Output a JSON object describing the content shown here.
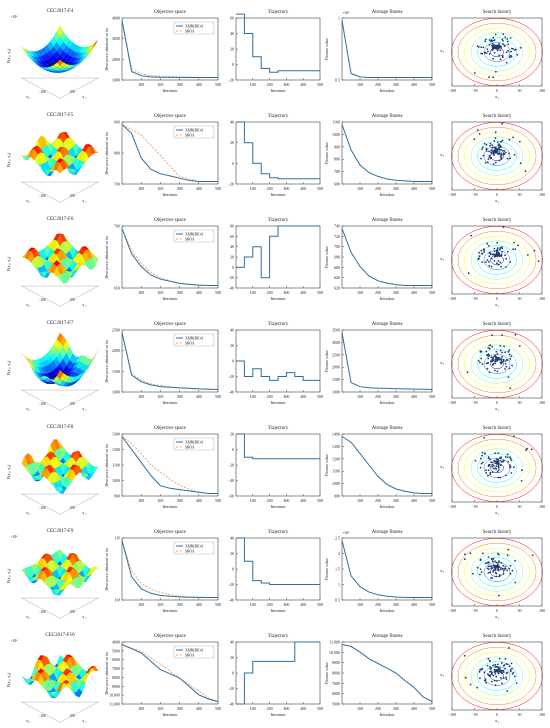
{
  "labels": {
    "col_titles": [
      "Objective space",
      "Trajectory",
      "Average fitness",
      "Search history"
    ],
    "obj_xlabel": "Iteration",
    "obj_ylabel": "Best score obtained so far",
    "traj_xlabel": "Iteration",
    "avg_xlabel": "Iteration",
    "avg_ylabel": "Fitness value",
    "surf_zlabel": "F(x₁, x₂)",
    "surf_x1": "x₁",
    "surf_x2": "x₂",
    "hist_xlabel": "x₁",
    "hist_ylabel": "x₂"
  },
  "colors": {
    "primary": "#2f6f9f",
    "secondary": "#e6a77a",
    "scatter": "#1f3e6b",
    "axis": "#444444"
  },
  "chart_data": [
    {
      "type": "line",
      "row_title": "CEC2017-F4",
      "surface_ticks": [
        "100",
        "0",
        "−100",
        "100",
        "0",
        "−100"
      ],
      "surface_exp": "×10⁴",
      "objective": {
        "legend": [
          "AMRHROA",
          "SBOA"
        ],
        "ylabel_ticks": [
          "1000",
          "2000",
          "3000",
          "4000"
        ],
        "xticks": [
          "100",
          "200",
          "300",
          "400",
          "500"
        ],
        "series": [
          {
            "name": "AMRHROA",
            "values": [
              4300,
              900,
              620,
              540,
              520,
              510,
              505,
              500,
              500,
              500,
              500
            ]
          },
          {
            "name": "SBOA",
            "values": [
              4300,
              1100,
              760,
              640,
              600,
              580,
              560,
              540,
              530,
              520,
              515
            ]
          }
        ]
      },
      "trajectory": {
        "yticks": [
          "60",
          "40",
          "20",
          "0",
          "−20"
        ],
        "xticks": [
          "100",
          "200",
          "300",
          "400",
          "500"
        ],
        "values": [
          65,
          40,
          10,
          -5,
          -10,
          -8,
          -8,
          -8,
          -8,
          -8,
          -8
        ]
      },
      "average": {
        "yticks": [
          "1",
          "0.5"
        ],
        "exp": "×10⁴",
        "xticks": [
          "100",
          "200",
          "300",
          "400",
          "500"
        ],
        "values": [
          1.0,
          0.08,
          0.02,
          0.01,
          0.01,
          0.01,
          0.01,
          0.01,
          0.01,
          0.01,
          0.01
        ]
      },
      "history_ticks": [
        "−100",
        "−50",
        "0",
        "50",
        "100"
      ]
    },
    {
      "type": "line",
      "row_title": "CEC2017-F5",
      "surface_ticks": [
        "100",
        "0",
        "−100",
        "100",
        "0",
        "−100"
      ],
      "surface_exp": "",
      "objective": {
        "legend": [
          "AMRHROA",
          "SBOA"
        ],
        "ylabel_ticks": [
          "700",
          "800",
          "900"
        ],
        "xticks": [
          "100",
          "200",
          "300",
          "400",
          "500"
        ],
        "series": [
          {
            "name": "AMRHROA",
            "values": [
              900,
              860,
              750,
              700,
              680,
              670,
              660,
              650,
              645,
              645,
              645
            ]
          },
          {
            "name": "SBOA",
            "values": [
              900,
              880,
              860,
              820,
              780,
              740,
              700,
              690,
              680,
              680,
              680
            ]
          }
        ]
      },
      "trajectory": {
        "yticks": [
          "40",
          "20",
          "0",
          "−20"
        ],
        "xticks": [
          "100",
          "200",
          "300",
          "400",
          "500"
        ],
        "values": [
          40,
          20,
          0,
          -10,
          -14,
          -15,
          -15,
          -15,
          -15,
          -15,
          -15
        ]
      },
      "average": {
        "yticks": [
          "1100",
          "1000",
          "900",
          "800",
          "700",
          "600"
        ],
        "exp": "",
        "xticks": [
          "100",
          "200",
          "300",
          "400",
          "500"
        ],
        "values": [
          1100,
          900,
          780,
          720,
          690,
          670,
          660,
          655,
          650,
          650,
          650
        ]
      },
      "history_ticks": [
        "−100",
        "−50",
        "0",
        "50",
        "100"
      ]
    },
    {
      "type": "line",
      "row_title": "CEC2017-F6",
      "surface_ticks": [
        "100",
        "0",
        "−100",
        "100",
        "0",
        "−100"
      ],
      "surface_exp": "",
      "objective": {
        "legend": [
          "AMRHROA",
          "SBOA"
        ],
        "ylabel_ticks": [
          "650",
          "700"
        ],
        "xticks": [
          "100",
          "200",
          "300",
          "400",
          "500"
        ],
        "series": [
          {
            "name": "AMRHROA",
            "values": [
              740,
              680,
              650,
              630,
              620,
              615,
              610,
              608,
              606,
              605,
              605
            ]
          },
          {
            "name": "SBOA",
            "values": [
              740,
              690,
              660,
              640,
              628,
              620,
              615,
              612,
              610,
              610,
              610
            ]
          }
        ]
      },
      "trajectory": {
        "yticks": [
          "80",
          "60",
          "40",
          "20",
          "0",
          "−20",
          "−40"
        ],
        "xticks": [
          "100",
          "200",
          "300",
          "400",
          "500"
        ],
        "values": [
          0,
          20,
          40,
          -20,
          60,
          80,
          80,
          80,
          80,
          80,
          80
        ]
      },
      "average": {
        "yticks": [
          "740",
          "720",
          "700",
          "680",
          "660",
          "640",
          "620"
        ],
        "exp": "",
        "xticks": [
          "100",
          "200",
          "300",
          "400",
          "500"
        ],
        "values": [
          740,
          690,
          660,
          640,
          630,
          625,
          622,
          620,
          620,
          620,
          620
        ]
      },
      "history_ticks": [
        "−100",
        "−50",
        "0",
        "50",
        "100"
      ]
    },
    {
      "type": "line",
      "row_title": "CEC2017-F7",
      "surface_ticks": [
        "100",
        "0",
        "−100",
        "100",
        "0",
        "−100"
      ],
      "surface_exp": "",
      "objective": {
        "legend": [
          "AMRHROA",
          "SBOA"
        ],
        "ylabel_ticks": [
          "1000",
          "1500",
          "2000",
          "2500"
        ],
        "xticks": [
          "100",
          "200",
          "300",
          "400",
          "500"
        ],
        "series": [
          {
            "name": "AMRHROA",
            "values": [
              2600,
              1300,
              1100,
              1000,
              950,
              930,
              910,
              900,
              880,
              870,
              860
            ]
          },
          {
            "name": "SBOA",
            "values": [
              2600,
              1400,
              1200,
              1100,
              1050,
              1000,
              980,
              960,
              950,
              940,
              930
            ]
          }
        ]
      },
      "trajectory": {
        "yticks": [
          "40",
          "20",
          "0",
          "−20",
          "−40"
        ],
        "xticks": [
          "100",
          "200",
          "300",
          "400",
          "500"
        ],
        "values": [
          0,
          -20,
          -10,
          -20,
          -25,
          -20,
          -15,
          -20,
          -25,
          -25,
          -25
        ]
      },
      "average": {
        "yticks": [
          "3500",
          "3000",
          "2500",
          "2000",
          "1500",
          "1000"
        ],
        "exp": "",
        "xticks": [
          "100",
          "200",
          "300",
          "400",
          "500"
        ],
        "values": [
          3500,
          1200,
          1000,
          950,
          930,
          920,
          910,
          900,
          890,
          880,
          870
        ]
      },
      "history_ticks": [
        "−100",
        "−50",
        "0",
        "50",
        "100"
      ]
    },
    {
      "type": "line",
      "row_title": "CEC2017-F8",
      "surface_ticks": [
        "100",
        "0",
        "−100",
        "100",
        "0",
        "−100"
      ],
      "surface_exp": "",
      "objective": {
        "legend": [
          "AMRHROA",
          "SBOA"
        ],
        "ylabel_ticks": [
          "900",
          "1000",
          "1100",
          "1200",
          "1300"
        ],
        "xticks": [
          "100",
          "200",
          "300",
          "400",
          "500"
        ],
        "series": [
          {
            "name": "AMRHROA",
            "values": [
              1300,
              1200,
              1100,
              1000,
              920,
              900,
              890,
              880,
              870,
              860,
              860
            ]
          },
          {
            "name": "SBOA",
            "values": [
              1300,
              1250,
              1180,
              1100,
              1050,
              1000,
              960,
              930,
              910,
              900,
              900
            ]
          }
        ]
      },
      "trajectory": {
        "yticks": [
          "20",
          "0",
          "−20",
          "−40",
          "−60"
        ],
        "xticks": [
          "100",
          "200",
          "300",
          "400",
          "500"
        ],
        "values": [
          20,
          -10,
          -12,
          -12,
          -12,
          -12,
          -12,
          -12,
          -12,
          -12,
          -12
        ]
      },
      "average": {
        "yticks": [
          "1400",
          "1300",
          "1200",
          "1100",
          "1000",
          "900"
        ],
        "exp": "",
        "xticks": [
          "100",
          "200",
          "300",
          "400",
          "500"
        ],
        "values": [
          1400,
          1350,
          1250,
          1150,
          1050,
          980,
          940,
          920,
          905,
          900,
          900
        ]
      },
      "history_ticks": [
        "−100",
        "−50",
        "0",
        "50",
        "100"
      ]
    },
    {
      "type": "line",
      "row_title": "CEC2017-F9",
      "surface_ticks": [
        "100",
        "0",
        "−100",
        "100",
        "0",
        "−100"
      ],
      "surface_exp": "×10⁴",
      "objective": {
        "legend": [
          "AMRHROA",
          "SBOA"
        ],
        "ylabel_ticks": [
          "10⁴",
          "10³"
        ],
        "xticks": [
          "100",
          "200",
          "300",
          "400",
          "500"
        ],
        "series": [
          {
            "name": "AMRHROA",
            "values": [
              20000,
              8000,
              4000,
              2500,
              1800,
              1500,
              1300,
              1200,
              1150,
              1100,
              1100
            ]
          },
          {
            "name": "SBOA",
            "values": [
              20000,
              10000,
              6000,
              4000,
              3000,
              2200,
              1800,
              1500,
              1400,
              1300,
              1300
            ]
          }
        ]
      },
      "trajectory": {
        "yticks": [
          "40",
          "20",
          "0",
          "−20",
          "−40"
        ],
        "xticks": [
          "100",
          "200",
          "300",
          "400",
          "500"
        ],
        "values": [
          40,
          10,
          -15,
          -18,
          -20,
          -20,
          -20,
          -20,
          -20,
          -20,
          -20
        ]
      },
      "average": {
        "yticks": [
          "2.5",
          "2",
          "1.5",
          "1",
          "0.5"
        ],
        "exp": "×10⁴",
        "xticks": [
          "100",
          "200",
          "300",
          "400",
          "500"
        ],
        "values": [
          2.5,
          1.2,
          0.8,
          0.6,
          0.5,
          0.45,
          0.42,
          0.4,
          0.4,
          0.4,
          0.4
        ]
      },
      "history_ticks": [
        "−100",
        "−50",
        "0",
        "50",
        "100"
      ]
    },
    {
      "type": "line",
      "row_title": "CEC2017-F10",
      "surface_ticks": [
        "100",
        "0",
        "−100",
        "100",
        "0",
        "−100"
      ],
      "surface_exp": "×10⁴",
      "objective": {
        "legend": [
          "AMRHROA",
          "SBOA"
        ],
        "ylabel_ticks": [
          "11,000",
          "10,000",
          "9000",
          "8000",
          "7000",
          "6000",
          "5000",
          "4000"
        ],
        "xticks": [
          "100",
          "200",
          "300",
          "400",
          "500"
        ],
        "series": [
          {
            "name": "AMRHROA",
            "values": [
              11000,
              10500,
              10000,
              9000,
              8000,
              7500,
              7000,
              6000,
              5000,
              4500,
              4200
            ]
          },
          {
            "name": "SBOA",
            "values": [
              11000,
              10600,
              10200,
              9500,
              8800,
              8000,
              7200,
              6500,
              5800,
              5000,
              4600
            ]
          }
        ]
      },
      "trajectory": {
        "yticks": [
          "40",
          "20",
          "0",
          "−20",
          "−40"
        ],
        "xticks": [
          "100",
          "200",
          "300",
          "400",
          "500"
        ],
        "values": [
          -40,
          0,
          15,
          15,
          15,
          15,
          15,
          40,
          40,
          40,
          40
        ]
      },
      "average": {
        "yticks": [
          "11,000",
          "10,000",
          "9000",
          "8000",
          "7000",
          "6000",
          "5000"
        ],
        "exp": "",
        "xticks": [
          "100",
          "200",
          "300",
          "400",
          "500"
        ],
        "values": [
          11000,
          10800,
          10200,
          9500,
          9000,
          8500,
          8000,
          7200,
          6500,
          5500,
          5000
        ]
      },
      "history_ticks": [
        "−100",
        "−50",
        "0",
        "50",
        "100"
      ]
    }
  ]
}
